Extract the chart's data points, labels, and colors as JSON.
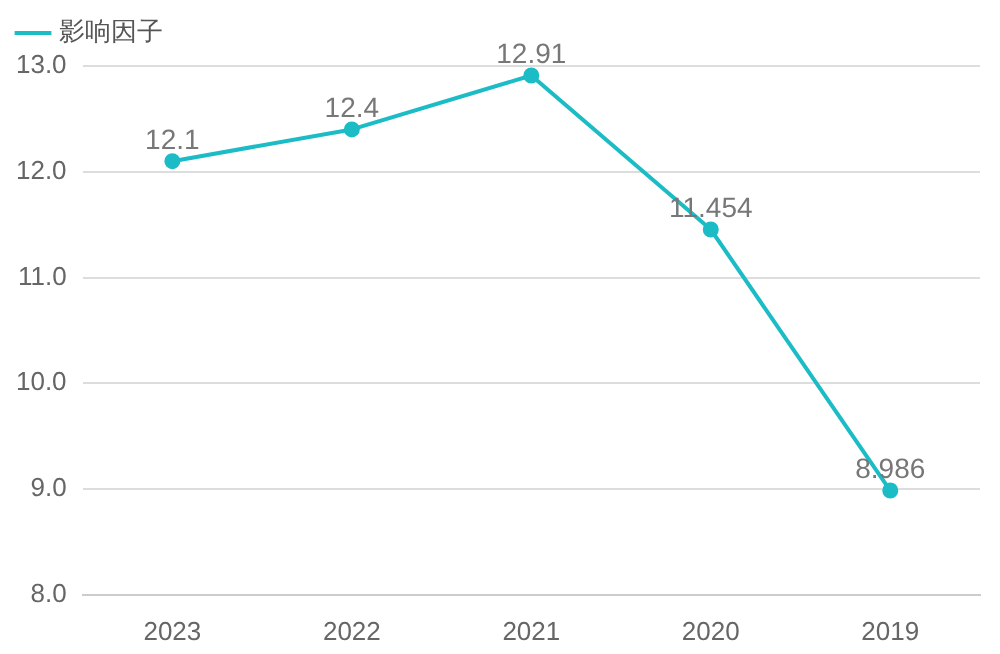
{
  "chart_data": {
    "type": "line",
    "categories": [
      "2023",
      "2022",
      "2021",
      "2020",
      "2019"
    ],
    "series": [
      {
        "name": "影响因子",
        "color": "#1bbcc6",
        "values": [
          12.1,
          12.4,
          12.91,
          11.454,
          8.986
        ]
      }
    ],
    "ylim": [
      8,
      13
    ],
    "yticks": [
      {
        "value": 8,
        "label": "8.0"
      },
      {
        "value": 9,
        "label": "9.0"
      },
      {
        "value": 10,
        "label": "10.0"
      },
      {
        "value": 11,
        "label": "11.0"
      },
      {
        "value": 12,
        "label": "12.0"
      },
      {
        "value": 13,
        "label": "13.0"
      }
    ],
    "grid": "y",
    "legend": "top left",
    "marker": "circle",
    "data_labels": true
  }
}
